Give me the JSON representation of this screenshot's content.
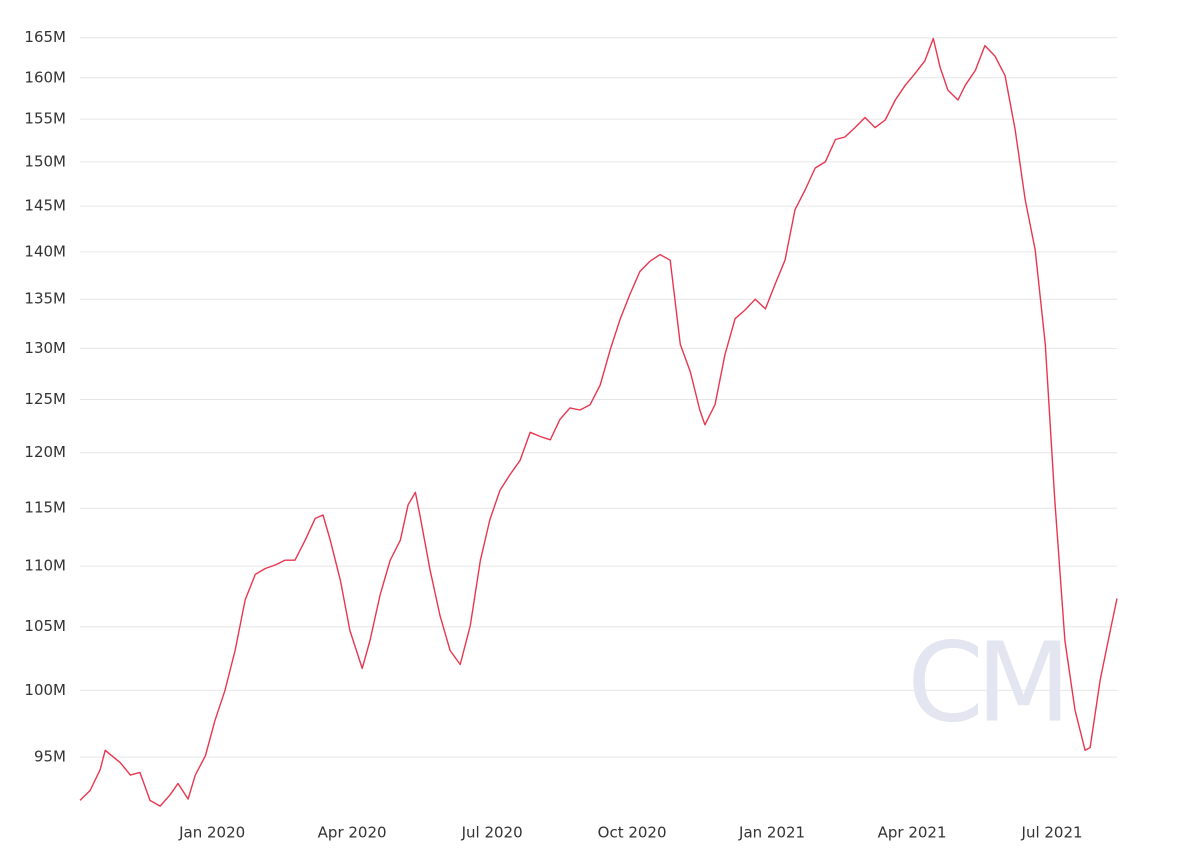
{
  "chart_data": {
    "type": "line",
    "watermark": "CM",
    "color": "#e8364f",
    "grid": true,
    "log_y": true,
    "x": [
      2019.764,
      2019.782,
      2019.8,
      2019.809,
      2019.821,
      2019.836,
      2019.854,
      2019.871,
      2019.889,
      2019.907,
      2019.925,
      2019.939,
      2019.957,
      2019.97,
      2019.988,
      2020.005,
      2020.023,
      2020.041,
      2020.059,
      2020.077,
      2020.095,
      2020.113,
      2020.13,
      2020.148,
      2020.166,
      2020.184,
      2020.198,
      2020.211,
      2020.229,
      2020.246,
      2020.268,
      2020.282,
      2020.3,
      2020.318,
      2020.336,
      2020.35,
      2020.363,
      2020.371,
      2020.389,
      2020.407,
      2020.425,
      2020.443,
      2020.461,
      2020.479,
      2020.496,
      2020.514,
      2020.532,
      2020.55,
      2020.568,
      2020.586,
      2020.604,
      2020.621,
      2020.639,
      2020.657,
      2020.675,
      2020.693,
      2020.711,
      2020.729,
      2020.746,
      2020.764,
      2020.782,
      2020.8,
      2020.818,
      2020.836,
      2020.854,
      2020.871,
      2020.88,
      2020.898,
      2020.916,
      2020.934,
      2020.952,
      2020.97,
      2020.988,
      2021.005,
      2021.023,
      2021.041,
      2021.059,
      2021.077,
      2021.095,
      2021.113,
      2021.13,
      2021.148,
      2021.166,
      2021.184,
      2021.202,
      2021.22,
      2021.238,
      2021.255,
      2021.273,
      2021.288,
      2021.3,
      2021.314,
      2021.332,
      2021.345,
      2021.363,
      2021.38,
      2021.398,
      2021.416,
      2021.434,
      2021.452,
      2021.47,
      2021.488,
      2021.505,
      2021.523,
      2021.541,
      2021.559,
      2021.568,
      2021.586,
      2021.604,
      2021.616
    ],
    "values": [
      91.9,
      92.6,
      94.1,
      95.5,
      95.1,
      94.6,
      93.7,
      93.9,
      91.9,
      91.5,
      92.3,
      93.1,
      92.0,
      93.7,
      95.1,
      97.7,
      100.0,
      103.1,
      107.2,
      109.3,
      109.8,
      110.1,
      110.5,
      110.5,
      112.2,
      114.1,
      114.4,
      112.2,
      108.8,
      104.7,
      101.7,
      103.9,
      107.6,
      110.5,
      112.2,
      115.3,
      116.4,
      114.4,
      109.7,
      105.9,
      103.1,
      102.0,
      105.1,
      110.5,
      114.0,
      116.6,
      118.0,
      119.3,
      121.9,
      121.5,
      121.2,
      123.1,
      124.2,
      124.0,
      124.5,
      126.4,
      129.9,
      133.0,
      135.5,
      137.9,
      139.0,
      139.7,
      139.1,
      130.4,
      127.7,
      124.0,
      122.6,
      124.5,
      129.4,
      133.0,
      133.9,
      135.0,
      134.0,
      136.5,
      139.1,
      144.6,
      146.8,
      149.3,
      150.0,
      152.6,
      152.9,
      154.0,
      155.2,
      154.0,
      154.9,
      157.3,
      159.1,
      160.5,
      162.1,
      164.9,
      161.3,
      158.5,
      157.3,
      159.1,
      160.9,
      164.0,
      162.7,
      160.3,
      153.8,
      145.7,
      140.2,
      130.4,
      115.7,
      103.9,
      98.5,
      95.5,
      95.7,
      100.8,
      104.7,
      107.3
    ],
    "xlim": [
      2019.764,
      2021.616
    ],
    "xticks": [
      {
        "value": 2020,
        "label": "Jan 2020"
      },
      {
        "value": 2020.25,
        "label": "Apr 2020"
      },
      {
        "value": 2020.5,
        "label": "Jul 2020"
      },
      {
        "value": 2020.75,
        "label": "Oct 2020"
      },
      {
        "value": 2021,
        "label": "Jan 2021"
      },
      {
        "value": 2021.25,
        "label": "Apr 2021"
      },
      {
        "value": 2021.5,
        "label": "Jul 2021"
      }
    ],
    "ylim": [
      92,
      167
    ],
    "yticks": [
      {
        "value": 95,
        "label": "95M"
      },
      {
        "value": 100,
        "label": "100M"
      },
      {
        "value": 105,
        "label": "105M"
      },
      {
        "value": 110,
        "label": "110M"
      },
      {
        "value": 115,
        "label": "115M"
      },
      {
        "value": 120,
        "label": "120M"
      },
      {
        "value": 125,
        "label": "125M"
      },
      {
        "value": 130,
        "label": "130M"
      },
      {
        "value": 135,
        "label": "135M"
      },
      {
        "value": 140,
        "label": "140M"
      },
      {
        "value": 145,
        "label": "145M"
      },
      {
        "value": 150,
        "label": "150M"
      },
      {
        "value": 155,
        "label": "155M"
      },
      {
        "value": 160,
        "label": "160M"
      },
      {
        "value": 165,
        "label": "165M"
      }
    ]
  }
}
